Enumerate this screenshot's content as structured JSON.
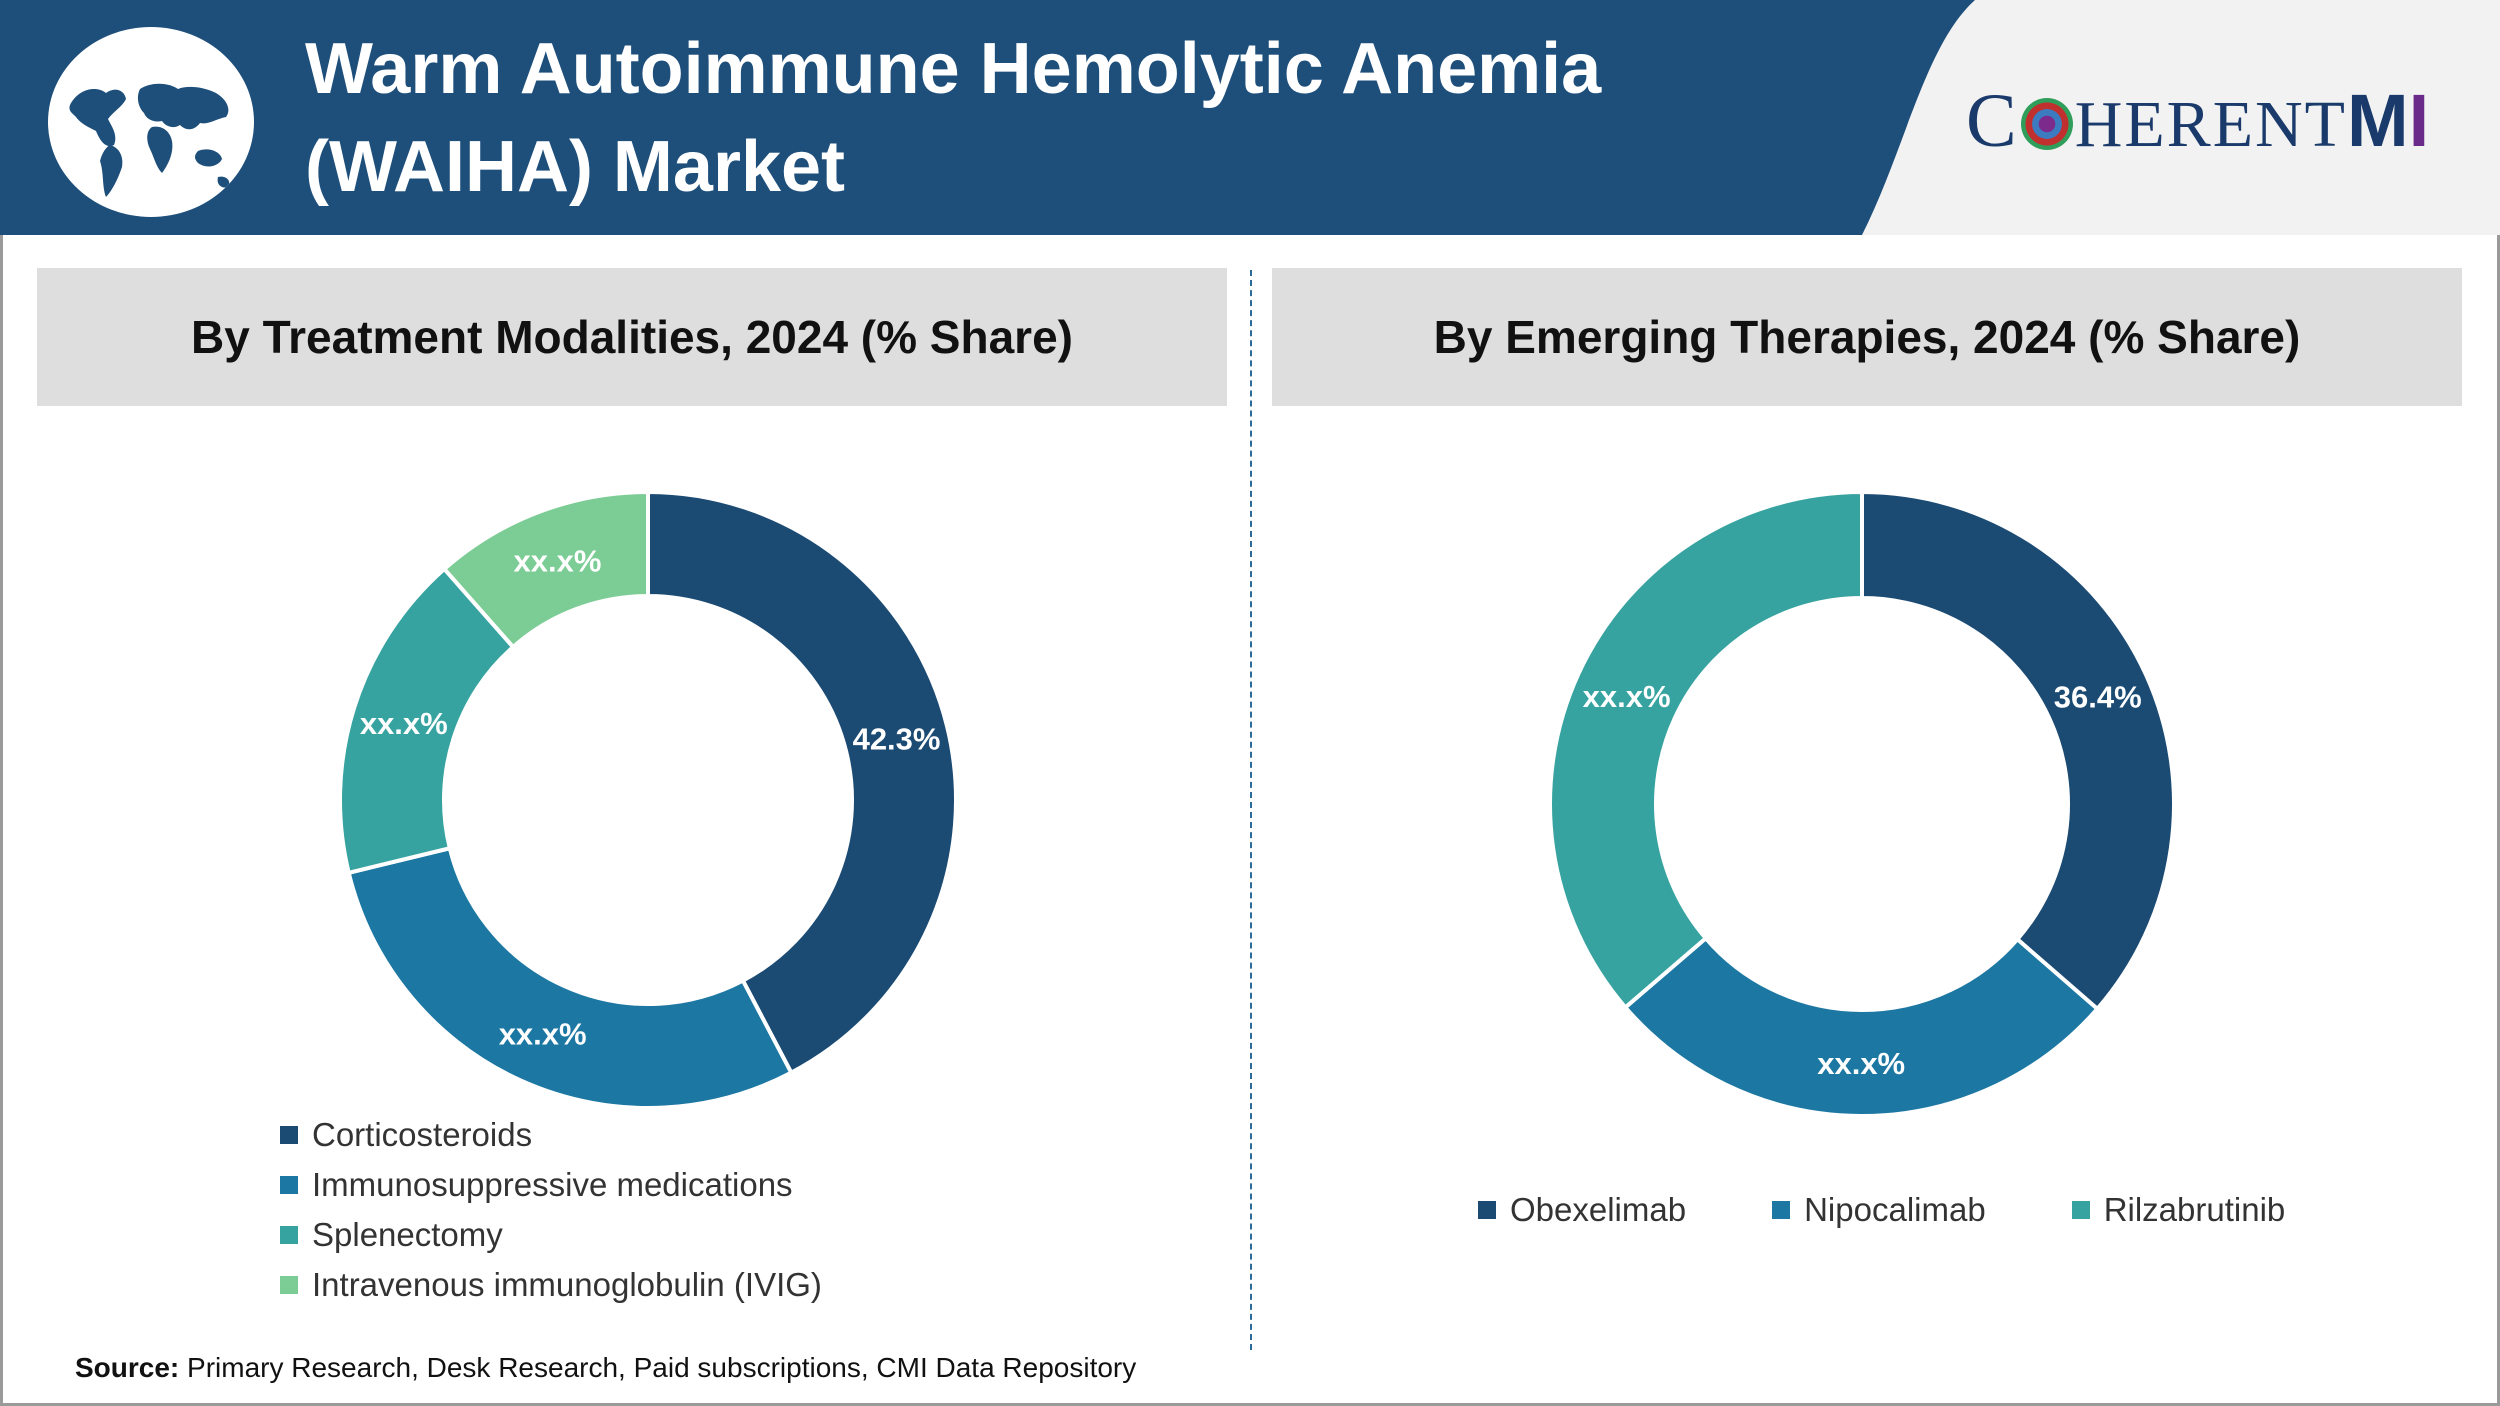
{
  "header": {
    "title_line1": "Warm Autoimmune Hemolytic Anemia",
    "title_line2": "(WAIHA) Market",
    "logo_text": "COHERENT",
    "logo_suffix": "MI",
    "globe_icon": "world-map-globe-icon",
    "colors": {
      "band": "#1e4f7b",
      "logo": "#1a3a6b"
    }
  },
  "chart_data": [
    {
      "type": "pie",
      "donut": true,
      "title": "By Treatment Modalities, 2024 (% Share)",
      "categories": [
        "Corticosteroids",
        "Immunosuppressive medications",
        "Splenectomy",
        "Intravenous immunoglobulin (IVIG)"
      ],
      "values": [
        42.3,
        28.9,
        17.3,
        11.5
      ],
      "labels": [
        "42.3%",
        "xx.x%",
        "xx.x%",
        "xx.x%"
      ],
      "colors": [
        "#1b4a73",
        "#1c77a3",
        "#36a3a0",
        "#7ccc95"
      ],
      "legend": "bottom-left"
    },
    {
      "type": "pie",
      "donut": true,
      "title": "By Emerging Therapies, 2024 (% Share)",
      "categories": [
        "Obexelimab",
        "Nipocalimab",
        "Rilzabrutinib"
      ],
      "values": [
        36.4,
        27.3,
        36.3
      ],
      "labels": [
        "36.4%",
        "xx.x%",
        "xx.x%"
      ],
      "colors": [
        "#1b4a73",
        "#1c77a3",
        "#36a3a0"
      ],
      "legend": "bottom"
    }
  ],
  "footer": {
    "source_label": "Source:",
    "source_text": " Primary Research, Desk Research, Paid subscriptions, CMI Data Repository"
  }
}
